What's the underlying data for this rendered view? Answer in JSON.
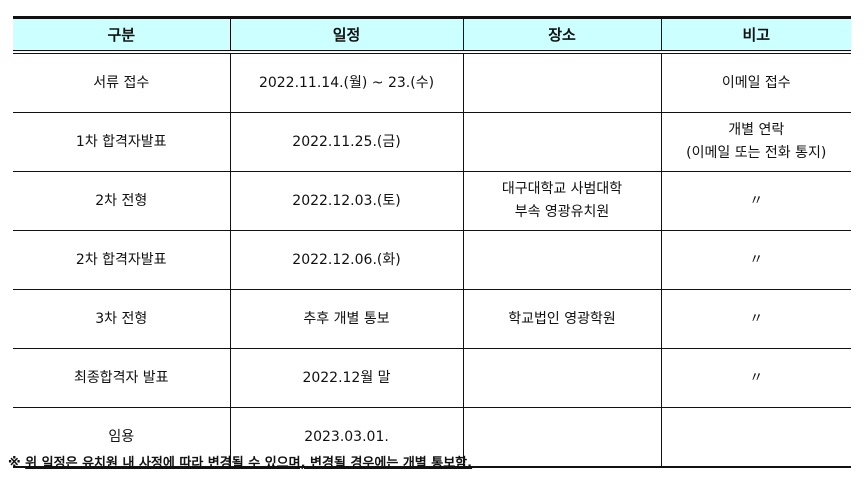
{
  "headers": [
    "구분",
    "일정",
    "장소",
    "비고"
  ],
  "rows": [
    {
      "category": "서류 접수",
      "schedule": "2022.11.14.(월) ~ 23.(수)",
      "place": "",
      "note": "이메일 접수"
    },
    {
      "category": "1차 합격자발표",
      "schedule": "2022.11.25.(금)",
      "place": "",
      "note": "개별 연락\n(이메일 또는 전화 통지)"
    },
    {
      "category": "2차 전형",
      "schedule": "2022.12.03.(토)",
      "place": "대구대학교 사범대학\n부속 영광유치원",
      "note": "〃"
    },
    {
      "category": "2차 합격자발표",
      "schedule": "2022.12.06.(화)",
      "place": "",
      "note": "〃"
    },
    {
      "category": "3차 전형",
      "schedule": "추후 개별 통보",
      "place": "학교법인 영광학원",
      "note": "〃"
    },
    {
      "category": "최종합격자 발표",
      "schedule": "2022.12월 말",
      "place": "",
      "note": "〃"
    },
    {
      "category": "임용",
      "schedule": "2023.03.01.",
      "place": "",
      "note": ""
    }
  ],
  "footnote": {
    "mark": "※",
    "text": "위 일정은 유치원 내 사정에 따라 변경될 수 있으며, 변경될 경우에는 개별 통보함."
  },
  "colors": {
    "header_bg": "#ccffff"
  }
}
